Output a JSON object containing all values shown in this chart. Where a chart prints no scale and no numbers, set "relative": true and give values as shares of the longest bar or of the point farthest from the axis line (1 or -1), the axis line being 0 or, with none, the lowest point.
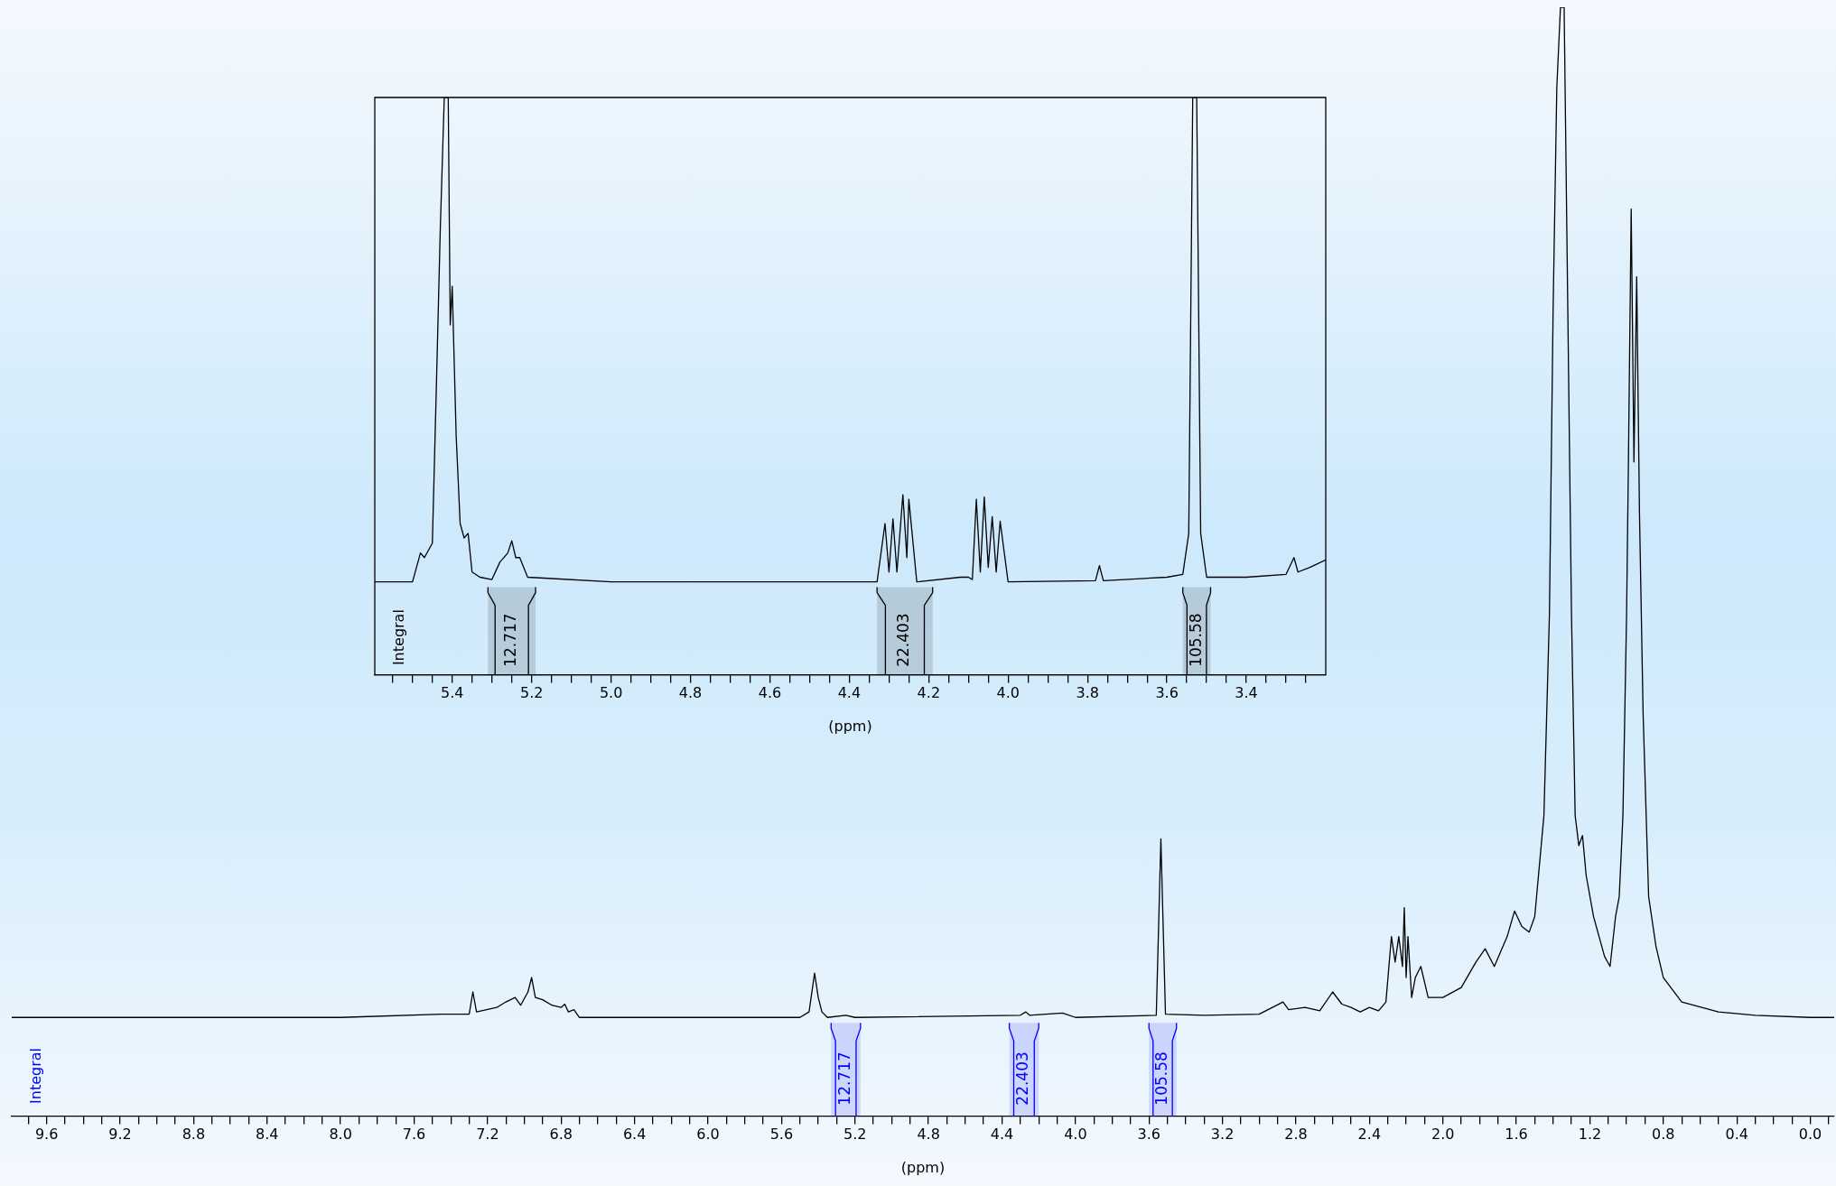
{
  "chart_data": [
    {
      "type": "line",
      "relative": true,
      "xlabel": "(ppm)",
      "xlim": [
        9.79,
        -0.13
      ],
      "xticks": [
        {
          "value": 9.7,
          "label": null
        },
        9.6,
        {
          "value": 9.5,
          "label": null
        },
        {
          "value": 9.4,
          "label": null
        },
        {
          "value": 9.3,
          "label": null
        },
        9.2,
        {
          "value": 9.1,
          "label": null
        },
        {
          "value": 9.0,
          "label": null
        },
        {
          "value": 8.9,
          "label": null
        },
        8.8,
        {
          "value": 8.7,
          "label": null
        },
        {
          "value": 8.6,
          "label": null
        },
        {
          "value": 8.5,
          "label": null
        },
        8.4,
        {
          "value": 8.3,
          "label": null
        },
        {
          "value": 8.2,
          "label": null
        },
        {
          "value": 8.1,
          "label": null
        },
        {
          "value": 8,
          "label": "8.0"
        },
        {
          "value": 7.9,
          "label": null
        },
        {
          "value": 7.8,
          "label": null
        },
        {
          "value": 7.7,
          "label": null
        },
        7.6,
        {
          "value": 7.5,
          "label": null
        },
        {
          "value": 7.4,
          "label": null
        },
        {
          "value": 7.3,
          "label": null
        },
        7.2,
        {
          "value": 7.1,
          "label": null
        },
        {
          "value": 7.0,
          "label": null
        },
        {
          "value": 6.9,
          "label": null
        },
        6.8,
        {
          "value": 6.7,
          "label": null
        },
        {
          "value": 6.6,
          "label": null
        },
        {
          "value": 6.5,
          "label": null
        },
        6.4,
        {
          "value": 6.3,
          "label": null
        },
        {
          "value": 6.2,
          "label": null
        },
        {
          "value": 6.1,
          "label": null
        },
        {
          "value": 6,
          "label": "6.0"
        },
        {
          "value": 5.9,
          "label": null
        },
        {
          "value": 5.8,
          "label": null
        },
        {
          "value": 5.7,
          "label": null
        },
        5.6,
        {
          "value": 5.5,
          "label": null
        },
        {
          "value": 5.4,
          "label": null
        },
        {
          "value": 5.3,
          "label": null
        },
        5.2,
        {
          "value": 5.1,
          "label": null
        },
        {
          "value": 5.0,
          "label": null
        },
        {
          "value": 4.9,
          "label": null
        },
        4.8,
        {
          "value": 4.7,
          "label": null
        },
        {
          "value": 4.6,
          "label": null
        },
        {
          "value": 4.5,
          "label": null
        },
        4.4,
        {
          "value": 4.3,
          "label": null
        },
        {
          "value": 4.2,
          "label": null
        },
        {
          "value": 4.1,
          "label": null
        },
        {
          "value": 4,
          "label": "4.0"
        },
        {
          "value": 3.9,
          "label": null
        },
        {
          "value": 3.8,
          "label": null
        },
        {
          "value": 3.7,
          "label": null
        },
        3.6,
        {
          "value": 3.5,
          "label": null
        },
        {
          "value": 3.4,
          "label": null
        },
        {
          "value": 3.3,
          "label": null
        },
        3.2,
        {
          "value": 3.1,
          "label": null
        },
        {
          "value": 3.0,
          "label": null
        },
        {
          "value": 2.9,
          "label": null
        },
        2.8,
        {
          "value": 2.7,
          "label": null
        },
        {
          "value": 2.6,
          "label": null
        },
        {
          "value": 2.5,
          "label": null
        },
        2.4,
        {
          "value": 2.3,
          "label": null
        },
        {
          "value": 2.2,
          "label": null
        },
        {
          "value": 2.1,
          "label": null
        },
        {
          "value": 2,
          "label": "2.0"
        },
        {
          "value": 1.9,
          "label": null
        },
        {
          "value": 1.8,
          "label": null
        },
        {
          "value": 1.7,
          "label": null
        },
        1.6,
        {
          "value": 1.5,
          "label": null
        },
        {
          "value": 1.4,
          "label": null
        },
        {
          "value": 1.3,
          "label": null
        },
        1.2,
        {
          "value": 1.1,
          "label": null
        },
        {
          "value": 1.0,
          "label": null
        },
        {
          "value": 0.9,
          "label": null
        },
        0.8,
        {
          "value": 0.7,
          "label": null
        },
        {
          "value": 0.6,
          "label": null
        },
        {
          "value": 0.5,
          "label": null
        },
        0.4,
        {
          "value": 0.3,
          "label": null
        },
        {
          "value": 0.2,
          "label": null
        },
        {
          "value": 0.1,
          "label": null
        },
        {
          "value": 0,
          "label": "0.0"
        },
        {
          "value": -0.1,
          "label": null
        }
      ],
      "x": [
        9.79,
        8.0,
        7.45,
        7.3,
        7.28,
        7.26,
        7.15,
        7.1,
        7.05,
        7.02,
        6.98,
        6.96,
        6.94,
        6.9,
        6.85,
        6.8,
        6.78,
        6.76,
        6.73,
        6.7,
        5.5,
        5.45,
        5.42,
        5.4,
        5.38,
        5.35,
        5.25,
        5.2,
        4.3,
        4.27,
        4.25,
        4.07,
        4.0,
        3.56,
        3.535,
        3.51,
        3.3,
        3.0,
        2.87,
        2.84,
        2.75,
        2.67,
        2.6,
        2.55,
        2.5,
        2.45,
        2.4,
        2.35,
        2.31,
        2.28,
        2.26,
        2.24,
        2.22,
        2.21,
        2.2,
        2.19,
        2.17,
        2.15,
        2.12,
        2.08,
        2.05,
        2.0,
        1.9,
        1.82,
        1.77,
        1.72,
        1.65,
        1.61,
        1.57,
        1.53,
        1.5,
        1.45,
        1.42,
        1.4,
        1.38,
        1.36,
        1.34,
        1.32,
        1.3,
        1.28,
        1.26,
        1.24,
        1.22,
        1.18,
        1.12,
        1.09,
        1.06,
        1.04,
        1.02,
        1.0,
        0.99,
        0.975,
        0.96,
        0.945,
        0.93,
        0.91,
        0.88,
        0.84,
        0.8,
        0.7,
        0.5,
        0.3,
        0,
        -0.13
      ],
      "series": [
        {
          "color": "#000000",
          "values": [
            0.089,
            0.089,
            0.092,
            0.092,
            0.112,
            0.094,
            0.098,
            0.103,
            0.107,
            0.1,
            0.112,
            0.125,
            0.107,
            0.105,
            0.1,
            0.098,
            0.101,
            0.094,
            0.096,
            0.089,
            0.089,
            0.094,
            0.129,
            0.107,
            0.094,
            0.089,
            0.091,
            0.089,
            0.091,
            0.094,
            0.091,
            0.093,
            0.089,
            0.091,
            0.25,
            0.092,
            0.091,
            0.092,
            0.103,
            0.096,
            0.098,
            0.095,
            0.112,
            0.101,
            0.098,
            0.094,
            0.098,
            0.095,
            0.103,
            0.162,
            0.139,
            0.162,
            0.135,
            0.188,
            0.125,
            0.162,
            0.107,
            0.125,
            0.135,
            0.107,
            0.107,
            0.107,
            0.116,
            0.139,
            0.151,
            0.135,
            0.162,
            0.185,
            0.171,
            0.166,
            0.18,
            0.271,
            0.453,
            0.727,
            0.927,
            1,
            1,
            0.727,
            0.453,
            0.271,
            0.244,
            0.253,
            0.217,
            0.18,
            0.144,
            0.135,
            0.18,
            0.198,
            0.271,
            0.453,
            0.59,
            0.818,
            0.59,
            0.757,
            0.545,
            0.362,
            0.198,
            0.153,
            0.125,
            0.103,
            0.094,
            0.091,
            0.089,
            0.089
          ]
        }
      ],
      "bands": [
        {
          "axis": "x",
          "from": 5.33,
          "to": 5.17,
          "label": "12.717",
          "color": "#0000ff"
        },
        {
          "axis": "x",
          "from": 4.36,
          "to": 4.2,
          "label": "22.403",
          "color": "#0000ff"
        },
        {
          "axis": "x",
          "from": 3.6,
          "to": 3.45,
          "label": "105.58",
          "color": "#0000ff"
        }
      ],
      "annotations": [
        "Integral"
      ]
    },
    {
      "type": "line",
      "relative": true,
      "xlabel": "(ppm)",
      "xlim": [
        5.595,
        3.2
      ],
      "xticks": [
        {
          "value": 5.55,
          "label": null
        },
        {
          "value": 5.5,
          "label": null
        },
        {
          "value": 5.45,
          "label": null
        },
        5.4,
        {
          "value": 5.35,
          "label": null
        },
        {
          "value": 5.3,
          "label": null
        },
        {
          "value": 5.25,
          "label": null
        },
        5.2,
        {
          "value": 5.15,
          "label": null
        },
        {
          "value": 5.1,
          "label": null
        },
        {
          "value": 5.05,
          "label": null
        },
        {
          "value": 5,
          "label": "5.0"
        },
        {
          "value": 4.95,
          "label": null
        },
        {
          "value": 4.9,
          "label": null
        },
        {
          "value": 4.85,
          "label": null
        },
        4.8,
        {
          "value": 4.75,
          "label": null
        },
        {
          "value": 4.7,
          "label": null
        },
        {
          "value": 4.65,
          "label": null
        },
        4.6,
        {
          "value": 4.55,
          "label": null
        },
        {
          "value": 4.5,
          "label": null
        },
        {
          "value": 4.45,
          "label": null
        },
        4.4,
        {
          "value": 4.35,
          "label": null
        },
        {
          "value": 4.3,
          "label": null
        },
        {
          "value": 4.25,
          "label": null
        },
        4.2,
        {
          "value": 4.15,
          "label": null
        },
        {
          "value": 4.1,
          "label": null
        },
        {
          "value": 4.05,
          "label": null
        },
        {
          "value": 4,
          "label": "4.0"
        },
        {
          "value": 3.95,
          "label": null
        },
        {
          "value": 3.9,
          "label": null
        },
        {
          "value": 3.85,
          "label": null
        },
        3.8,
        {
          "value": 3.75,
          "label": null
        },
        {
          "value": 3.7,
          "label": null
        },
        {
          "value": 3.65,
          "label": null
        },
        3.6,
        {
          "value": 3.55,
          "label": null
        },
        {
          "value": 3.5,
          "label": null
        },
        {
          "value": 3.45,
          "label": null
        },
        3.4,
        {
          "value": 3.35,
          "label": null
        },
        {
          "value": 3.3,
          "label": null
        },
        {
          "value": 3.25,
          "label": null
        }
      ],
      "x": [
        5.595,
        5.5,
        5.48,
        5.47,
        5.45,
        5.44,
        5.43,
        5.42,
        5.41,
        5.405,
        5.4,
        5.39,
        5.38,
        5.37,
        5.36,
        5.35,
        5.33,
        5.3,
        5.28,
        5.26,
        5.25,
        5.24,
        5.23,
        5.21,
        5.0,
        4.33,
        4.31,
        4.3,
        4.29,
        4.28,
        4.265,
        4.255,
        4.25,
        4.23,
        4.12,
        4.1,
        4.09,
        4.08,
        4.07,
        4.06,
        4.05,
        4.04,
        4.03,
        4.02,
        4.0,
        3.78,
        3.77,
        3.76,
        3.6,
        3.56,
        3.545,
        3.535,
        3.525,
        3.515,
        3.5,
        3.4,
        3.3,
        3.28,
        3.27,
        3.24,
        3.2
      ],
      "series": [
        {
          "color": "#000000",
          "values": [
            0.161,
            0.161,
            0.211,
            0.203,
            0.228,
            0.497,
            0.773,
            1,
            1,
            0.606,
            0.673,
            0.413,
            0.262,
            0.237,
            0.245,
            0.178,
            0.169,
            0.165,
            0.195,
            0.211,
            0.232,
            0.203,
            0.203,
            0.169,
            0.161,
            0.161,
            0.262,
            0.178,
            0.27,
            0.178,
            0.312,
            0.203,
            0.304,
            0.161,
            0.169,
            0.169,
            0.165,
            0.304,
            0.178,
            0.308,
            0.186,
            0.274,
            0.178,
            0.266,
            0.161,
            0.163,
            0.189,
            0.163,
            0.169,
            0.174,
            0.245,
            1,
            1,
            0.245,
            0.169,
            0.169,
            0.174,
            0.203,
            0.178,
            0.186,
            0.199
          ]
        }
      ],
      "bands": [
        {
          "axis": "x",
          "from": 5.31,
          "to": 5.19,
          "label": "12.717"
        },
        {
          "axis": "x",
          "from": 4.33,
          "to": 4.19,
          "label": "22.403"
        },
        {
          "axis": "x",
          "from": 3.56,
          "to": 3.49,
          "label": "105.58"
        }
      ],
      "annotations": [
        "Integral"
      ]
    }
  ]
}
